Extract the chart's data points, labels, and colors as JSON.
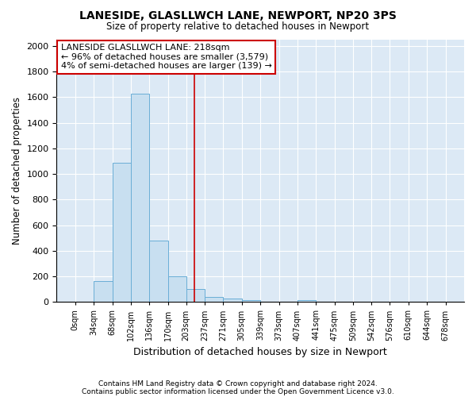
{
  "title": "LANESIDE, GLASLLWCH LANE, NEWPORT, NP20 3PS",
  "subtitle": "Size of property relative to detached houses in Newport",
  "xlabel": "Distribution of detached houses by size in Newport",
  "ylabel": "Number of detached properties",
  "bar_color": "#c8dff0",
  "bar_edge_color": "#6aaed6",
  "background_color": "#dce9f5",
  "grid_color": "#ffffff",
  "bin_edges": [
    0,
    34,
    68,
    102,
    136,
    170,
    203,
    237,
    271,
    305,
    339,
    373,
    407,
    441,
    475,
    509,
    542,
    576,
    610,
    644,
    678
  ],
  "bar_heights": [
    0,
    165,
    1085,
    1630,
    480,
    200,
    100,
    40,
    25,
    15,
    0,
    0,
    15,
    0,
    0,
    0,
    0,
    0,
    0,
    0
  ],
  "property_value": 218,
  "property_line_color": "#cc0000",
  "annotation_title": "LANESIDE GLASLLWCH LANE: 218sqm",
  "annotation_line1": "← 96% of detached houses are smaller (3,579)",
  "annotation_line2": "4% of semi-detached houses are larger (139) →",
  "annotation_box_color": "#cc0000",
  "ylim": [
    0,
    2050
  ],
  "yticks": [
    0,
    200,
    400,
    600,
    800,
    1000,
    1200,
    1400,
    1600,
    1800,
    2000
  ],
  "footnote1": "Contains HM Land Registry data © Crown copyright and database right 2024.",
  "footnote2": "Contains public sector information licensed under the Open Government Licence v3.0."
}
